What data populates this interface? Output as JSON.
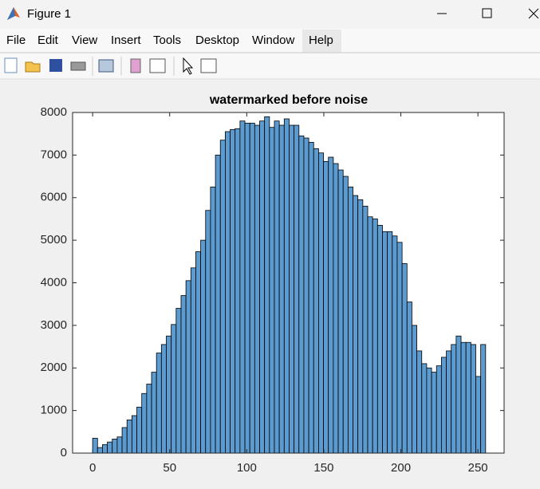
{
  "window": {
    "title": "Figure 1",
    "menu": [
      "File",
      "Edit",
      "View",
      "Insert",
      "Tools",
      "Desktop",
      "Window",
      "Help"
    ]
  },
  "chart_data": {
    "type": "histogram",
    "title": "watermarked before noise",
    "bins": [
      0,
      3.1875,
      6.375,
      9.5625,
      12.75,
      15.9375,
      19.125,
      22.3125,
      25.5,
      28.6875,
      31.875,
      35.0625,
      38.25,
      41.4375,
      44.625,
      47.8125,
      51,
      54.1875,
      57.375,
      60.5625,
      63.75,
      66.9375,
      70.125,
      73.3125,
      76.5,
      79.6875,
      82.875,
      86.0625,
      89.25,
      92.4375,
      95.625,
      98.8125,
      102,
      105.1875,
      108.375,
      111.5625,
      114.75,
      117.9375,
      121.125,
      124.3125,
      127.5,
      130.6875,
      133.875,
      137.0625,
      140.25,
      143.4375,
      146.625,
      149.8125,
      153,
      156.1875,
      159.375,
      162.5625,
      165.75,
      168.9375,
      172.125,
      175.3125,
      178.5,
      181.6875,
      184.875,
      188.0625,
      191.25,
      194.4375,
      197.625,
      200.8125,
      204,
      207.1875,
      210.375,
      213.5625,
      216.75,
      219.9375,
      223.125,
      226.3125,
      229.5,
      232.6875,
      235.875,
      239.0625,
      242.25,
      245.4375,
      248.625,
      251.8125,
      255
    ],
    "values": [
      350,
      130,
      200,
      260,
      330,
      380,
      600,
      780,
      880,
      1080,
      1400,
      1620,
      1900,
      2350,
      2550,
      2750,
      3020,
      3400,
      3700,
      4050,
      4350,
      4730,
      5000,
      5700,
      6250,
      7000,
      7350,
      7550,
      7600,
      7620,
      7800,
      7750,
      7750,
      7700,
      7800,
      7900,
      7650,
      7800,
      7700,
      7850,
      7700,
      7700,
      7450,
      7400,
      7300,
      7150,
      7050,
      6850,
      6950,
      6800,
      6650,
      6500,
      6250,
      6050,
      5950,
      5800,
      5550,
      5500,
      5350,
      5200,
      5200,
      5100,
      4950,
      4450,
      3550,
      3000,
      2400,
      2100,
      2000,
      1900,
      2050,
      2250,
      2400,
      2550,
      2750,
      2600,
      2600,
      2550,
      1800,
      2550
    ],
    "color": "#5b9bd0",
    "xlim": [
      -13,
      267
    ],
    "xticks": [
      0,
      50,
      100,
      150,
      200,
      250
    ],
    "ylim": [
      0,
      8000
    ],
    "yticks": [
      0,
      1000,
      2000,
      3000,
      4000,
      5000,
      6000,
      7000,
      8000
    ]
  }
}
